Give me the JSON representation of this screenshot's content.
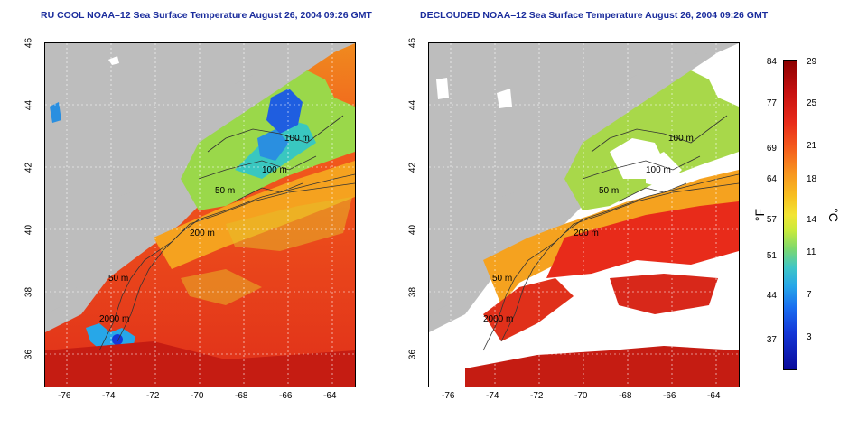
{
  "titles": {
    "left": "RU COOL NOAA–12 Sea Surface Temperature August 26, 2004 09:26 GMT",
    "right": "DECLOUDED NOAA–12 Sea Surface Temperature August 26, 2004 09:26 GMT"
  },
  "axes": {
    "x_ticks": [
      "-76",
      "-74",
      "-72",
      "-70",
      "-68",
      "-66",
      "-64"
    ],
    "y_ticks": [
      "46",
      "44",
      "42",
      "40",
      "38",
      "36"
    ]
  },
  "contour_labels": [
    "100 m",
    "100 m",
    "50 m",
    "200 m",
    "50 m",
    "2000 m"
  ],
  "colorbar": {
    "fahrenheit": [
      "84",
      "77",
      "69",
      "64",
      "57",
      "51",
      "44",
      "37"
    ],
    "celsius": [
      "29",
      "25",
      "21",
      "18",
      "14",
      "11",
      "7",
      "3"
    ],
    "unit_f": "°F",
    "unit_c": "°C"
  },
  "colors": {
    "title": "#1a2c9c",
    "land": "#bdbdbd",
    "cloud": "#ffffff"
  }
}
